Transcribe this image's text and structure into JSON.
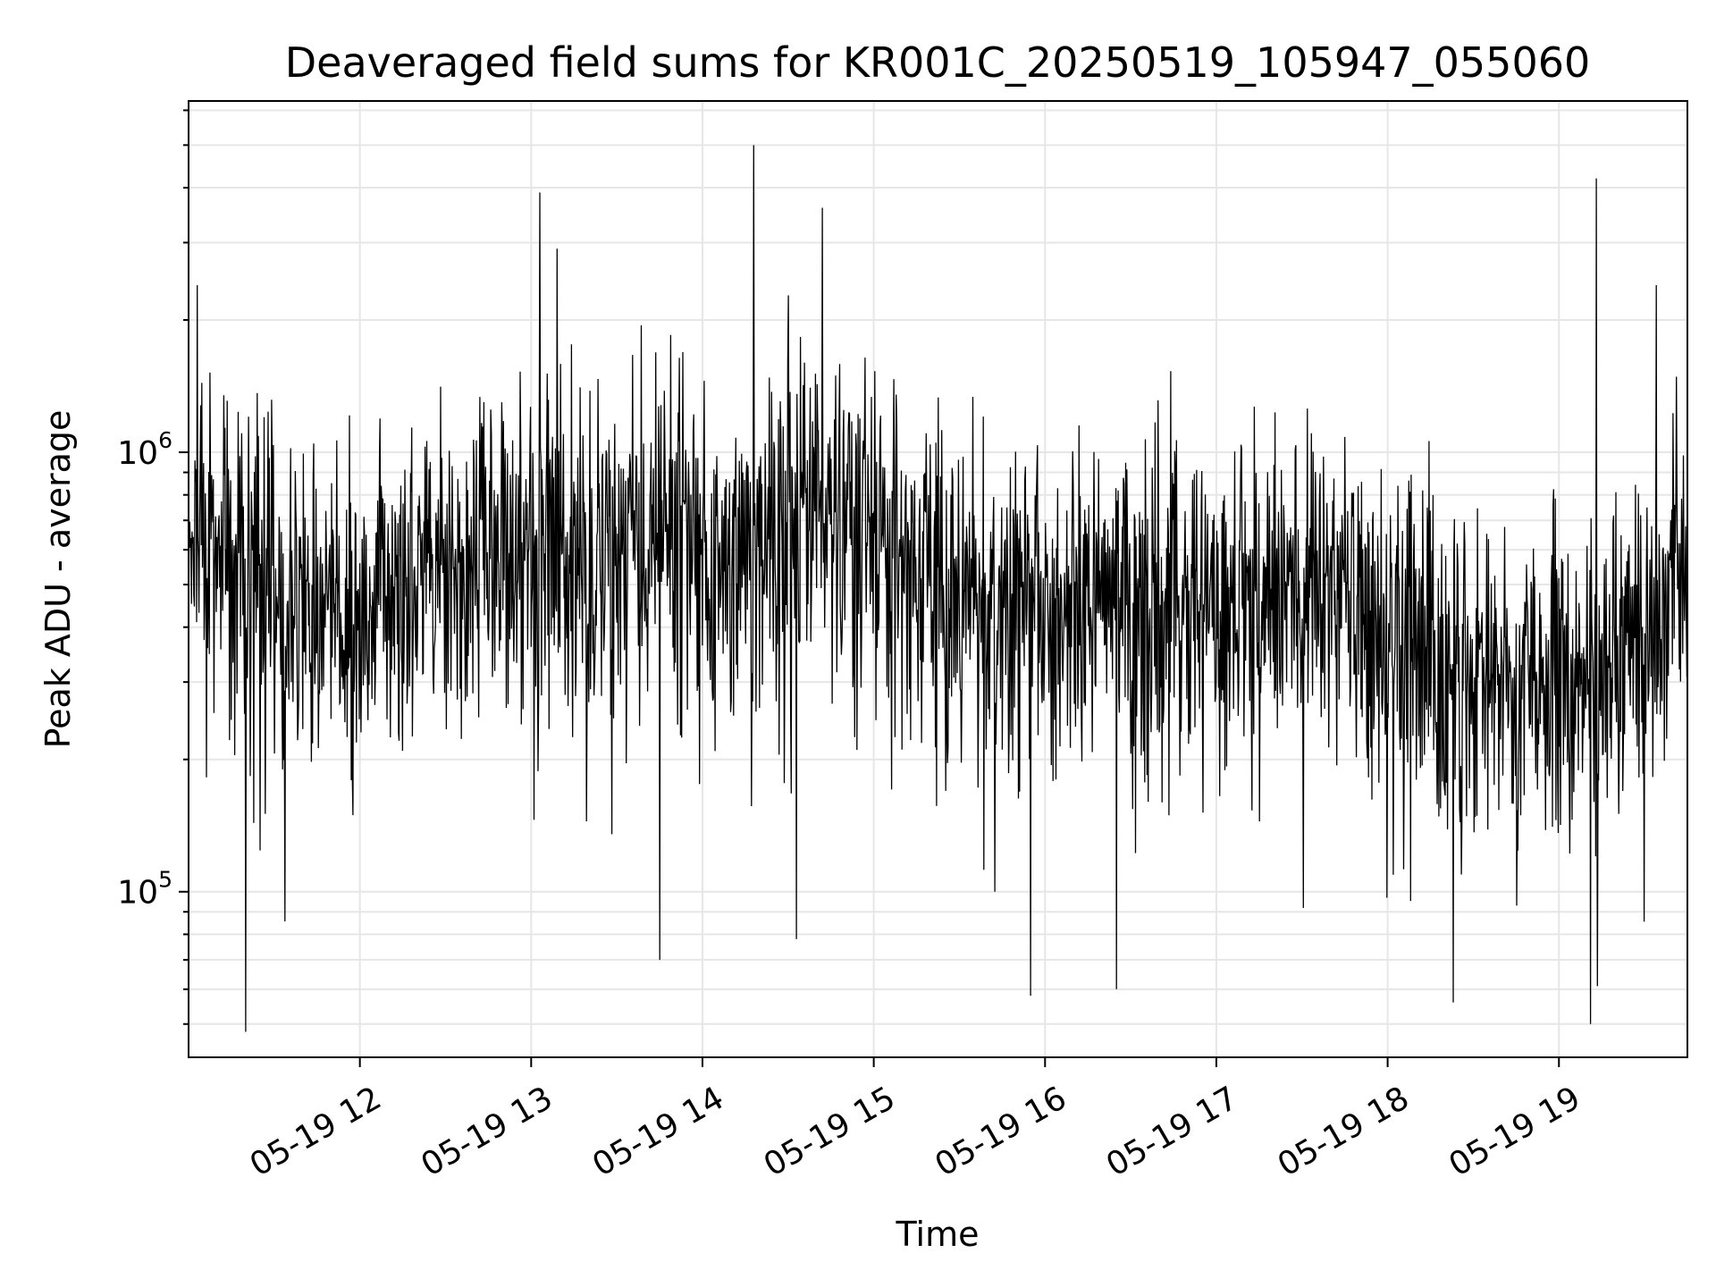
{
  "chart_data": {
    "type": "line",
    "title": "Deaveraged field sums for KR001C_20250519_105947_055060",
    "xlabel": "Time",
    "ylabel": "Peak ADU - average",
    "y_scale": "log",
    "ylim": [
      42000,
      6300000
    ],
    "xlim": [
      "2025-05-19 11:00",
      "2025-05-19 19:45"
    ],
    "x_ticks": [
      "05-19 12",
      "05-19 13",
      "05-19 14",
      "05-19 15",
      "05-19 16",
      "05-19 17",
      "05-19 18",
      "05-19 19"
    ],
    "y_tick_labels": [
      {
        "base": "10",
        "exp": "5",
        "value": 100000
      },
      {
        "base": "10",
        "exp": "6",
        "value": 1000000
      }
    ],
    "grid": true,
    "legend": "none",
    "line_color": "#000000",
    "series": [
      {
        "name": "",
        "x": [
          "2025-05-19 11:00",
          "2025-05-19 11:15",
          "2025-05-19 11:30",
          "2025-05-19 11:45",
          "2025-05-19 12:00",
          "2025-05-19 12:15",
          "2025-05-19 12:30",
          "2025-05-19 12:45",
          "2025-05-19 13:00",
          "2025-05-19 13:15",
          "2025-05-19 13:30",
          "2025-05-19 13:45",
          "2025-05-19 14:00",
          "2025-05-19 14:15",
          "2025-05-19 14:30",
          "2025-05-19 14:45",
          "2025-05-19 15:00",
          "2025-05-19 15:15",
          "2025-05-19 15:30",
          "2025-05-19 15:45",
          "2025-05-19 16:00",
          "2025-05-19 16:15",
          "2025-05-19 16:30",
          "2025-05-19 16:45",
          "2025-05-19 17:00",
          "2025-05-19 17:15",
          "2025-05-19 17:30",
          "2025-05-19 17:45",
          "2025-05-19 18:00",
          "2025-05-19 18:15",
          "2025-05-19 18:30",
          "2025-05-19 18:45",
          "2025-05-19 19:00",
          "2025-05-19 19:15",
          "2025-05-19 19:30",
          "2025-05-19 19:45"
        ],
        "median": [
          700000,
          560000,
          520000,
          470000,
          430000,
          480000,
          560000,
          640000,
          600000,
          620000,
          640000,
          660000,
          620000,
          640000,
          700000,
          720000,
          640000,
          560000,
          460000,
          440000,
          450000,
          440000,
          460000,
          440000,
          470000,
          500000,
          480000,
          460000,
          420000,
          380000,
          330000,
          300000,
          350000,
          340000,
          400000,
          620000
        ],
        "low": [
          140000,
          110000,
          100000,
          120000,
          110000,
          100000,
          150000,
          160000,
          130000,
          140000,
          140000,
          150000,
          150000,
          150000,
          170000,
          170000,
          150000,
          130000,
          110000,
          100000,
          110000,
          100000,
          100000,
          100000,
          110000,
          110000,
          110000,
          100000,
          95000,
          85000,
          80000,
          75000,
          80000,
          80000,
          85000,
          150000
        ],
        "high": [
          2200000,
          1800000,
          1600000,
          1500000,
          1400000,
          1600000,
          1800000,
          2100000,
          2000000,
          2100000,
          2100000,
          2200000,
          2000000,
          2100000,
          2300000,
          2400000,
          2100000,
          1800000,
          1500000,
          1400000,
          1500000,
          1400000,
          1500000,
          1400000,
          1500000,
          1600000,
          1500000,
          1400000,
          1300000,
          1200000,
          1050000,
          950000,
          1100000,
          1050000,
          1200000,
          2000000
        ],
        "peaks": [
          {
            "x": "2025-05-19 11:03",
            "y": 2400000
          },
          {
            "x": "2025-05-19 11:20",
            "y": 48000
          },
          {
            "x": "2025-05-19 13:03",
            "y": 3900000
          },
          {
            "x": "2025-05-19 13:45",
            "y": 70000
          },
          {
            "x": "2025-05-19 14:18",
            "y": 5000000
          },
          {
            "x": "2025-05-19 14:33",
            "y": 78000
          },
          {
            "x": "2025-05-19 14:42",
            "y": 3600000
          },
          {
            "x": "2025-05-19 15:55",
            "y": 58000
          },
          {
            "x": "2025-05-19 16:25",
            "y": 60000
          },
          {
            "x": "2025-05-19 18:23",
            "y": 56000
          },
          {
            "x": "2025-05-19 19:11",
            "y": 50000
          },
          {
            "x": "2025-05-19 19:13",
            "y": 4200000
          },
          {
            "x": "2025-05-19 19:34",
            "y": 2400000
          }
        ]
      }
    ]
  }
}
